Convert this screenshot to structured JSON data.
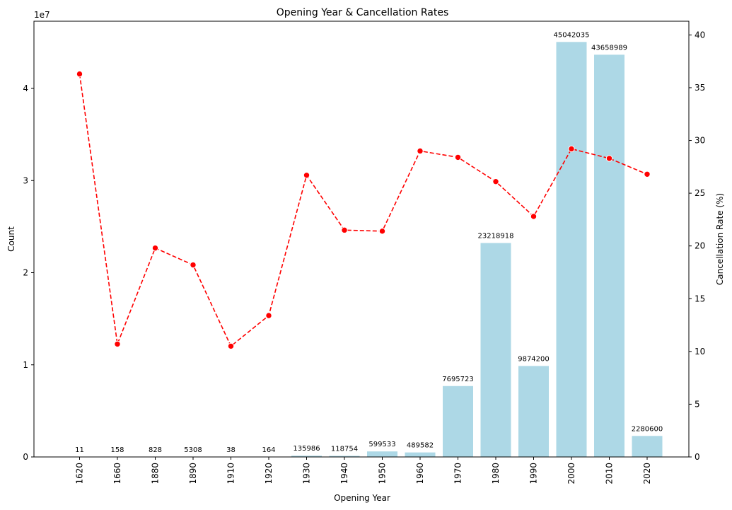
{
  "chart_data": {
    "type": "bar",
    "title": "Opening Year & Cancellation Rates",
    "xlabel": "Opening Year",
    "ylabel": "Count",
    "y2label": "Cancellation Rate (%)",
    "y_offset_label": "1e7",
    "categories": [
      "1620",
      "1660",
      "1880",
      "1890",
      "1910",
      "1920",
      "1930",
      "1940",
      "1950",
      "1960",
      "1970",
      "1980",
      "1990",
      "2000",
      "2010",
      "2020"
    ],
    "bar_data_labels": [
      "11",
      "158",
      "828",
      "5308",
      "38",
      "164",
      "135986",
      "118754",
      "599533",
      "489582",
      "7695723",
      "23218918",
      "9874200",
      "45042035",
      "43658989",
      "2280600"
    ],
    "series": [
      {
        "type": "bar",
        "axis": "left",
        "color": "#add8e6",
        "values": [
          11,
          158,
          828,
          5308,
          38,
          164,
          135986,
          118754,
          599533,
          489582,
          7695723,
          23218918,
          9874200,
          45042035,
          43658989,
          2280600
        ]
      },
      {
        "type": "line",
        "axis": "right",
        "color": "#ff0000",
        "line_style": "dashed",
        "marker": "circle",
        "values": [
          36.3,
          10.7,
          19.8,
          18.2,
          10.5,
          13.4,
          26.7,
          21.5,
          21.4,
          29.0,
          28.4,
          26.1,
          22.8,
          29.2,
          28.3,
          26.8
        ]
      }
    ],
    "y_ticks": [
      0,
      1,
      2,
      3,
      4
    ],
    "y2_ticks": [
      0,
      5,
      10,
      15,
      20,
      25,
      30,
      35,
      40
    ],
    "ylim": [
      0,
      47294137
    ],
    "y2lim": [
      0,
      41.3
    ],
    "grid": false,
    "legend": "none"
  }
}
